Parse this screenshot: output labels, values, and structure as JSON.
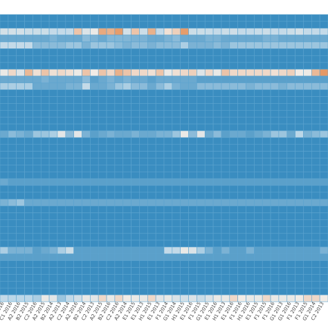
{
  "chart_data": {
    "type": "heatmap",
    "title": "",
    "xlabel": "",
    "ylabel": "",
    "grid": true,
    "legend": "none",
    "colors": {
      "low": "#3a8dc0",
      "mid_light": "#bcd7e8",
      "mid": "#f2ece6",
      "high": "#e2894e",
      "gridline": "#5da4cf"
    },
    "value_range": [
      0,
      1
    ],
    "x_tick_labels": [
      "C1 2016",
      "C1 2016",
      "A2 2016",
      "B2 2015",
      "C2 2016",
      "A2 2015",
      "B2 2014",
      "A2 2013",
      "C2 2014",
      "A2 2016",
      "B2 2014",
      "C2 2013",
      "A2 2015",
      "B2 2016",
      "C2 2016",
      "A2 2014",
      "E1 2015",
      "E1 2013",
      "H1 2015",
      "E1 2013",
      "F1 2014",
      "G1 2014",
      "H1 2015",
      "E1 2016",
      "F1 2015",
      "G1 2015",
      "E1 2016",
      "H1 2013",
      "E1 2016",
      "F1 2016",
      "H1 2016",
      "E1 2015",
      "F1 2015",
      "F1 2016",
      "G1 2013",
      "G1 2016",
      "F1 2013",
      "F1 2015",
      "G1 2014",
      "C2 2013"
    ],
    "rows": 42,
    "cols": 40,
    "rows_data": [
      {
        "row": 2,
        "values": [
          0.55,
          0.55,
          0.55,
          0.5,
          0.5,
          0.5,
          0.45,
          0.45,
          0.45,
          0.85,
          0.6,
          0.7,
          0.92,
          0.9,
          0.95,
          0.55,
          0.85,
          0.5,
          0.9,
          0.45,
          0.78,
          0.82,
          0.95,
          0.5,
          0.5,
          0.48,
          0.45,
          0.5,
          0.52,
          0.45,
          0.45,
          0.48,
          0.5,
          0.45,
          0.45,
          0.5,
          0.55,
          0.45,
          0.45,
          0.45
        ]
      },
      {
        "row": 3,
        "values": [
          0.15,
          0.15,
          0.15,
          0.15,
          0.15,
          0.15,
          0.2,
          0.15,
          0.15,
          0.15,
          0.25,
          0.2,
          0.15,
          0.22,
          0.22,
          0.22,
          0.2,
          0.2,
          0.15,
          0.15,
          0.2,
          0.25,
          0.15,
          0.15,
          0.15,
          0.2,
          0.2,
          0.15,
          0.15,
          0.15,
          0.15,
          0.15,
          0.2,
          0.2,
          0.15,
          0.15,
          0.15,
          0.15,
          0.15,
          0.15
        ]
      },
      {
        "row": 4,
        "values": [
          0.45,
          0.45,
          0.45,
          0.45,
          0.25,
          0.25,
          0.25,
          0.25,
          0.3,
          0.3,
          0.2,
          0.3,
          0.3,
          0.3,
          0.25,
          0.2,
          0.25,
          0.25,
          0.2,
          0.25,
          0.25,
          0.25,
          0.35,
          0.2,
          0.2,
          0.2,
          0.25,
          0.2,
          0.3,
          0.3,
          0.3,
          0.3,
          0.3,
          0.3,
          0.3,
          0.3,
          0.3,
          0.3,
          0.3,
          0.3
        ]
      },
      {
        "row": 8,
        "values": [
          0.7,
          0.8,
          0.62,
          0.88,
          0.78,
          0.85,
          0.78,
          0.8,
          0.78,
          0.72,
          0.85,
          0.75,
          0.85,
          0.8,
          0.9,
          0.85,
          0.8,
          0.8,
          0.78,
          0.85,
          0.7,
          0.78,
          0.8,
          0.82,
          0.62,
          0.8,
          0.7,
          0.85,
          0.8,
          0.8,
          0.8,
          0.8,
          0.8,
          0.78,
          0.8,
          0.82,
          0.75,
          0.72,
          0.88,
          0.96
        ]
      },
      {
        "row": 9,
        "values": [
          0.15,
          0.15,
          0.15,
          0.15,
          0.15,
          0.2,
          0.15,
          0.15,
          0.15,
          0.15,
          0.25,
          0.1,
          0.15,
          0.2,
          0.15,
          0.2,
          0.15,
          0.15,
          0.1,
          0.15,
          0.15,
          0.15,
          0.15,
          0.15,
          0.1,
          0.1,
          0.1,
          0.1,
          0.1,
          0.1,
          0.1,
          0.1,
          0.1,
          0.1,
          0.1,
          0.1,
          0.1,
          0.1,
          0.1,
          0.1
        ]
      },
      {
        "row": 10,
        "values": [
          0.35,
          0.35,
          0.35,
          0.35,
          0.15,
          0.15,
          0.15,
          0.15,
          0.2,
          0.2,
          0.45,
          0.15,
          0.15,
          0.2,
          0.3,
          0.35,
          0.25,
          0.25,
          0.15,
          0.25,
          0.35,
          0.2,
          0.15,
          0.15,
          0.25,
          0.25,
          0.25,
          0.25,
          0.25,
          0.25,
          0.2,
          0.25,
          0.25,
          0.25,
          0.2,
          0.25,
          0.25,
          0.25,
          0.25,
          0.25
        ]
      },
      {
        "row": 17,
        "values": [
          0.15,
          0.25,
          0.2,
          0.15,
          0.3,
          0.3,
          0.35,
          0.65,
          0.25,
          0.65,
          0.2,
          0.1,
          0.15,
          0.2,
          0.15,
          0.15,
          0.2,
          0.15,
          0.15,
          0.2,
          0.2,
          0.3,
          0.7,
          0.25,
          0.65,
          0.15,
          0.25,
          0.1,
          0.15,
          0.15,
          0.1,
          0.15,
          0.2,
          0.3,
          0.3,
          0.15,
          0.4,
          0.2,
          0.25,
          0.3
        ]
      },
      {
        "row": 24,
        "values": [
          0.15,
          0.1,
          0.1,
          0.1,
          0.1,
          0.1,
          0.1,
          0.1,
          0.1,
          0.1,
          0.1,
          0.1,
          0.1,
          0.1,
          0.1,
          0.1,
          0.1,
          0.1,
          0.1,
          0.1,
          0.1,
          0.1,
          0.1,
          0.1,
          0.1,
          0.1,
          0.1,
          0.1,
          0.1,
          0.1,
          0.1,
          0.1,
          0.1,
          0.1,
          0.1,
          0.1,
          0.1,
          0.1,
          0.1,
          0.1
        ]
      },
      {
        "row": 27,
        "values": [
          0.2,
          0.25,
          0.3,
          0.15,
          0.15,
          0.15,
          0.15,
          0.15,
          0.15,
          0.15,
          0.15,
          0.15,
          0.15,
          0.15,
          0.15,
          0.15,
          0.15,
          0.15,
          0.15,
          0.15,
          0.15,
          0.15,
          0.15,
          0.15,
          0.15,
          0.15,
          0.15,
          0.15,
          0.15,
          0.15,
          0.15,
          0.15,
          0.15,
          0.15,
          0.15,
          0.15,
          0.15,
          0.15,
          0.15,
          0.15
        ]
      },
      {
        "row": 34,
        "values": [
          0.35,
          0.2,
          0.2,
          0.2,
          0.1,
          0.15,
          0.2,
          0.35,
          0.5,
          0.1,
          0.1,
          0.1,
          0.1,
          0.1,
          0.1,
          0.1,
          0.1,
          0.1,
          0.1,
          0.1,
          0.45,
          0.45,
          0.7,
          0.6,
          0.35,
          0.2,
          0.1,
          0.2,
          0.1,
          0.1,
          0.2,
          0.1,
          0.1,
          0.1,
          0.1,
          0.1,
          0.1,
          0.1,
          0.1,
          0.2
        ]
      },
      {
        "row": 35,
        "values": [
          0.1,
          0.1,
          0.1,
          0.1,
          0.1,
          0.1,
          0.1,
          0.1,
          0.1,
          0.1,
          0.1,
          0.1,
          0.1,
          0.1,
          0.1,
          0.1,
          0.1,
          0.1,
          0.1,
          0.1,
          0.1,
          0.1,
          0.1,
          0.1,
          0.1,
          0.1,
          0.1,
          0.1,
          0.1,
          0.1,
          0.1,
          0.1,
          0.1,
          0.1,
          0.1,
          0.1,
          0.1,
          0.1,
          0.1,
          0.1
        ]
      },
      {
        "row": 41,
        "values": [
          0.45,
          0.4,
          0.4,
          0.4,
          0.35,
          0.7,
          0.65,
          0.3,
          0.45,
          0.55,
          0.7,
          0.65,
          0.8,
          0.7,
          0.8,
          0.75,
          0.7,
          0.7,
          0.8,
          0.65,
          0.7,
          0.6,
          0.55,
          0.6,
          0.5,
          0.6,
          0.7,
          0.7,
          0.8,
          0.75,
          0.7,
          0.7,
          0.8,
          0.7,
          0.7,
          0.7,
          0.75,
          0.8,
          0.8,
          0.75
        ]
      }
    ]
  }
}
